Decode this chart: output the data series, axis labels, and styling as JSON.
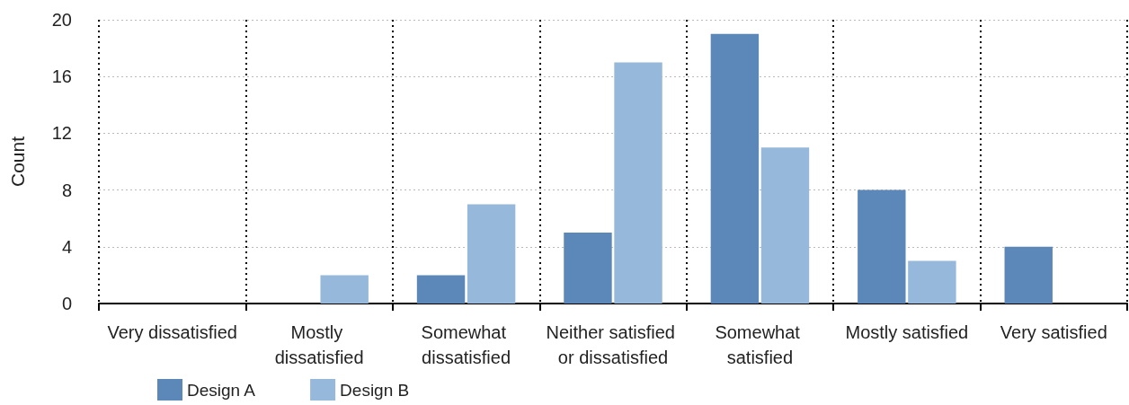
{
  "chart_data": {
    "type": "bar",
    "ylabel": "Count",
    "categories": [
      "Very dissatisfied",
      "Mostly dissatisfied",
      "Somewhat dissatisfied",
      "Neither satisfied or dissatisfied",
      "Somewhat satisfied",
      "Mostly satisfied",
      "Very satisfied"
    ],
    "series": [
      {
        "name": "Design A",
        "color": "#5b87b9",
        "values": [
          0,
          0,
          2,
          5,
          19,
          8,
          4
        ]
      },
      {
        "name": "Design B",
        "color": "#96b8da",
        "values": [
          0,
          2,
          7,
          17,
          11,
          3,
          0
        ]
      }
    ],
    "ylim": [
      0,
      20
    ],
    "yticks": [
      0,
      4,
      8,
      12,
      16,
      20
    ],
    "grid": true,
    "legend": "bottom left"
  }
}
